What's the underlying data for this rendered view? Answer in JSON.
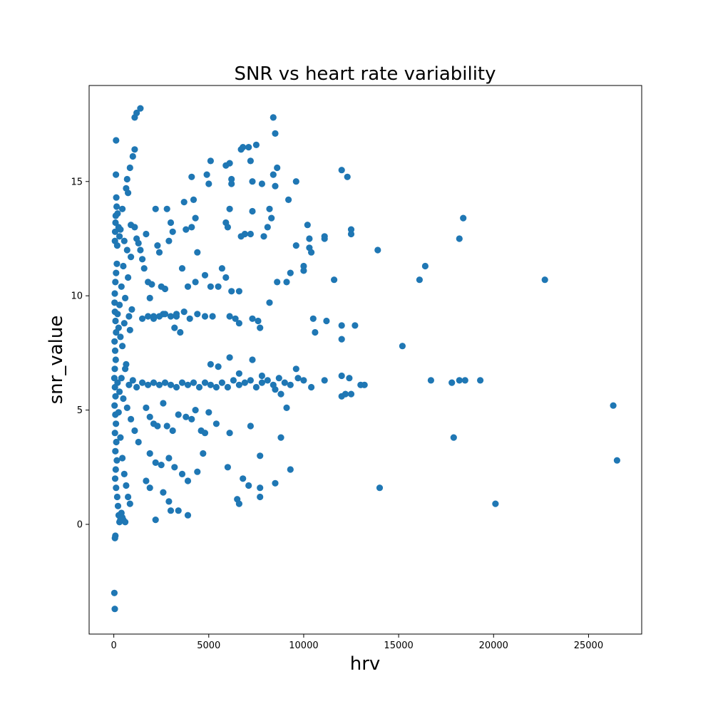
{
  "chart_data": {
    "type": "scatter",
    "title": "SNR vs heart rate variability",
    "xlabel": "hrv",
    "ylabel": "snr_value",
    "xlim": [
      -1300,
      27800
    ],
    "ylim": [
      -4.8,
      19.2
    ],
    "xticks": [
      0,
      5000,
      10000,
      15000,
      20000,
      25000
    ],
    "yticks": [
      0,
      5,
      10,
      15
    ],
    "grid": false,
    "color": "#1f77b4",
    "series": [
      {
        "points": [
          [
            50,
            -3.7
          ],
          [
            30,
            -3.0
          ],
          [
            60,
            -0.6
          ],
          [
            80,
            -0.5
          ],
          [
            120,
            16.8
          ],
          [
            110,
            15.3
          ],
          [
            130,
            14.3
          ],
          [
            150,
            13.9
          ],
          [
            100,
            13.5
          ],
          [
            90,
            13.2
          ],
          [
            70,
            12.8
          ],
          [
            60,
            12.4
          ],
          [
            200,
            13.6
          ],
          [
            250,
            13.0
          ],
          [
            300,
            12.6
          ],
          [
            180,
            12.2
          ],
          [
            160,
            11.4
          ],
          [
            120,
            11.0
          ],
          [
            80,
            10.6
          ],
          [
            50,
            10.1
          ],
          [
            40,
            9.7
          ],
          [
            60,
            9.3
          ],
          [
            90,
            8.9
          ],
          [
            120,
            8.4
          ],
          [
            40,
            8.0
          ],
          [
            70,
            7.6
          ],
          [
            100,
            7.2
          ],
          [
            50,
            6.8
          ],
          [
            30,
            6.4
          ],
          [
            60,
            6.0
          ],
          [
            90,
            5.6
          ],
          [
            40,
            5.2
          ],
          [
            80,
            4.8
          ],
          [
            110,
            4.4
          ],
          [
            60,
            4.0
          ],
          [
            130,
            3.6
          ],
          [
            80,
            3.2
          ],
          [
            160,
            2.8
          ],
          [
            100,
            2.4
          ],
          [
            70,
            2.0
          ],
          [
            120,
            1.6
          ],
          [
            180,
            1.2
          ],
          [
            220,
            0.8
          ],
          [
            260,
            0.4
          ],
          [
            300,
            0.1
          ],
          [
            350,
            0.2
          ],
          [
            400,
            0.5
          ],
          [
            450,
            0.3
          ],
          [
            500,
            0.2
          ],
          [
            600,
            0.1
          ],
          [
            200,
            9.2
          ],
          [
            250,
            8.6
          ],
          [
            300,
            9.6
          ],
          [
            350,
            8.2
          ],
          [
            400,
            10.4
          ],
          [
            450,
            7.8
          ],
          [
            500,
            11.3
          ],
          [
            550,
            8.8
          ],
          [
            600,
            9.9
          ],
          [
            650,
            7.0
          ],
          [
            700,
            12.0
          ],
          [
            750,
            10.8
          ],
          [
            800,
            9.1
          ],
          [
            850,
            8.5
          ],
          [
            900,
            11.7
          ],
          [
            950,
            9.4
          ],
          [
            200,
            6.2
          ],
          [
            300,
            5.8
          ],
          [
            400,
            6.4
          ],
          [
            500,
            5.5
          ],
          [
            600,
            6.8
          ],
          [
            700,
            5.1
          ],
          [
            800,
            6.1
          ],
          [
            900,
            4.6
          ],
          [
            1000,
            6.3
          ],
          [
            1100,
            4.1
          ],
          [
            1200,
            6.0
          ],
          [
            1300,
            3.6
          ],
          [
            250,
            4.9
          ],
          [
            350,
            3.8
          ],
          [
            450,
            2.9
          ],
          [
            550,
            2.2
          ],
          [
            650,
            1.7
          ],
          [
            750,
            1.2
          ],
          [
            850,
            0.9
          ],
          [
            350,
            12.9
          ],
          [
            450,
            13.8
          ],
          [
            550,
            12.4
          ],
          [
            650,
            14.7
          ],
          [
            750,
            14.5
          ],
          [
            700,
            15.1
          ],
          [
            850,
            15.6
          ],
          [
            1000,
            16.1
          ],
          [
            1100,
            16.4
          ],
          [
            1100,
            17.8
          ],
          [
            1200,
            18.0
          ],
          [
            1400,
            18.2
          ],
          [
            900,
            13.1
          ],
          [
            1100,
            13.0
          ],
          [
            1200,
            12.5
          ],
          [
            1300,
            12.3
          ],
          [
            1400,
            12.0
          ],
          [
            1500,
            11.6
          ],
          [
            1600,
            11.2
          ],
          [
            1700,
            12.7
          ],
          [
            1800,
            10.6
          ],
          [
            1900,
            9.9
          ],
          [
            2000,
            10.5
          ],
          [
            2100,
            9.1
          ],
          [
            2200,
            13.8
          ],
          [
            2300,
            12.2
          ],
          [
            2400,
            11.9
          ],
          [
            2500,
            10.4
          ],
          [
            2600,
            9.2
          ],
          [
            2700,
            10.3
          ],
          [
            2800,
            13.8
          ],
          [
            2900,
            12.4
          ],
          [
            3000,
            13.2
          ],
          [
            3100,
            12.8
          ],
          [
            3200,
            8.6
          ],
          [
            3300,
            9.2
          ],
          [
            3500,
            8.4
          ],
          [
            1500,
            9.0
          ],
          [
            1800,
            9.1
          ],
          [
            2100,
            9.0
          ],
          [
            2400,
            9.1
          ],
          [
            2700,
            9.2
          ],
          [
            3000,
            9.1
          ],
          [
            3300,
            9.1
          ],
          [
            3700,
            9.3
          ],
          [
            4000,
            9.0
          ],
          [
            4400,
            9.2
          ],
          [
            4800,
            9.1
          ],
          [
            5200,
            9.1
          ],
          [
            6100,
            9.1
          ],
          [
            6400,
            9.0
          ],
          [
            6600,
            8.8
          ],
          [
            7300,
            9.0
          ],
          [
            7600,
            8.9
          ],
          [
            7700,
            8.6
          ],
          [
            1500,
            6.2
          ],
          [
            1800,
            6.1
          ],
          [
            2100,
            6.2
          ],
          [
            2400,
            6.1
          ],
          [
            2700,
            6.2
          ],
          [
            3000,
            6.1
          ],
          [
            3300,
            6.0
          ],
          [
            3600,
            6.2
          ],
          [
            3900,
            6.1
          ],
          [
            4200,
            6.2
          ],
          [
            4500,
            6.0
          ],
          [
            4800,
            6.2
          ],
          [
            5100,
            6.1
          ],
          [
            5400,
            6.0
          ],
          [
            5700,
            6.2
          ],
          [
            6000,
            6.0
          ],
          [
            6300,
            6.3
          ],
          [
            6600,
            6.1
          ],
          [
            6900,
            6.2
          ],
          [
            7200,
            6.3
          ],
          [
            7500,
            6.0
          ],
          [
            7800,
            6.2
          ],
          [
            8100,
            6.3
          ],
          [
            8400,
            6.1
          ],
          [
            8700,
            6.4
          ],
          [
            9000,
            6.2
          ],
          [
            9300,
            6.1
          ],
          [
            9700,
            6.4
          ],
          [
            10000,
            6.3
          ],
          [
            10400,
            6.0
          ],
          [
            11100,
            6.3
          ],
          [
            12000,
            6.5
          ],
          [
            12400,
            6.4
          ],
          [
            13000,
            6.1
          ],
          [
            13200,
            6.1
          ],
          [
            12000,
            5.6
          ],
          [
            12200,
            5.7
          ],
          [
            12500,
            5.7
          ],
          [
            8500,
            5.9
          ],
          [
            8800,
            5.7
          ],
          [
            9100,
            5.1
          ],
          [
            5100,
            7.0
          ],
          [
            5500,
            6.9
          ],
          [
            6100,
            7.3
          ],
          [
            6600,
            6.6
          ],
          [
            7300,
            7.2
          ],
          [
            7800,
            6.5
          ],
          [
            9600,
            6.8
          ],
          [
            1700,
            5.1
          ],
          [
            1900,
            4.7
          ],
          [
            2100,
            4.4
          ],
          [
            2300,
            4.3
          ],
          [
            2600,
            5.3
          ],
          [
            2800,
            4.3
          ],
          [
            3100,
            4.1
          ],
          [
            3400,
            4.8
          ],
          [
            3800,
            4.7
          ],
          [
            4100,
            4.6
          ],
          [
            4300,
            5.0
          ],
          [
            4600,
            4.1
          ],
          [
            4800,
            4.0
          ],
          [
            5000,
            4.9
          ],
          [
            5400,
            4.4
          ],
          [
            6100,
            4.0
          ],
          [
            7200,
            4.3
          ],
          [
            8800,
            3.8
          ],
          [
            1900,
            3.1
          ],
          [
            2200,
            2.7
          ],
          [
            2500,
            2.6
          ],
          [
            2900,
            2.9
          ],
          [
            3200,
            2.5
          ],
          [
            3600,
            2.2
          ],
          [
            3900,
            1.9
          ],
          [
            4400,
            2.3
          ],
          [
            4700,
            3.1
          ],
          [
            6000,
            2.5
          ],
          [
            1700,
            1.9
          ],
          [
            1900,
            1.6
          ],
          [
            2200,
            0.2
          ],
          [
            2600,
            1.4
          ],
          [
            2900,
            1.0
          ],
          [
            3000,
            0.6
          ],
          [
            3400,
            0.6
          ],
          [
            3900,
            0.4
          ],
          [
            6500,
            1.1
          ],
          [
            6600,
            0.9
          ],
          [
            6800,
            2.0
          ],
          [
            7100,
            1.7
          ],
          [
            7700,
            1.6
          ],
          [
            7700,
            1.2
          ],
          [
            7700,
            3.0
          ],
          [
            8500,
            1.8
          ],
          [
            9300,
            2.4
          ],
          [
            3700,
            14.1
          ],
          [
            4100,
            15.2
          ],
          [
            4200,
            14.2
          ],
          [
            4100,
            13.0
          ],
          [
            4300,
            13.4
          ],
          [
            3800,
            12.9
          ],
          [
            4400,
            11.9
          ],
          [
            3600,
            11.2
          ],
          [
            3900,
            10.4
          ],
          [
            4300,
            10.6
          ],
          [
            4800,
            10.9
          ],
          [
            5100,
            10.4
          ],
          [
            5500,
            10.4
          ],
          [
            5700,
            11.2
          ],
          [
            5900,
            10.8
          ],
          [
            6200,
            10.2
          ],
          [
            6600,
            10.2
          ],
          [
            5000,
            14.9
          ],
          [
            4900,
            15.3
          ],
          [
            5100,
            15.9
          ],
          [
            5900,
            15.7
          ],
          [
            6100,
            15.8
          ],
          [
            6200,
            15.1
          ],
          [
            6200,
            14.9
          ],
          [
            6700,
            16.4
          ],
          [
            6800,
            16.5
          ],
          [
            7100,
            16.5
          ],
          [
            7500,
            16.6
          ],
          [
            7200,
            15.9
          ],
          [
            7300,
            15.0
          ],
          [
            7800,
            14.9
          ],
          [
            8400,
            15.3
          ],
          [
            8600,
            15.6
          ],
          [
            8400,
            17.8
          ],
          [
            8500,
            17.1
          ],
          [
            8500,
            14.8
          ],
          [
            9600,
            15.0
          ],
          [
            9200,
            14.2
          ],
          [
            8200,
            13.8
          ],
          [
            8300,
            13.4
          ],
          [
            8100,
            13.0
          ],
          [
            7300,
            13.7
          ],
          [
            5900,
            13.2
          ],
          [
            6000,
            13.0
          ],
          [
            6100,
            13.8
          ],
          [
            6700,
            12.6
          ],
          [
            6900,
            12.7
          ],
          [
            7200,
            12.7
          ],
          [
            7900,
            12.6
          ],
          [
            8600,
            10.6
          ],
          [
            8200,
            9.7
          ],
          [
            9100,
            10.6
          ],
          [
            9300,
            11.0
          ],
          [
            9600,
            12.2
          ],
          [
            10000,
            11.3
          ],
          [
            10000,
            11.1
          ],
          [
            10200,
            13.1
          ],
          [
            10300,
            12.5
          ],
          [
            10300,
            12.1
          ],
          [
            10400,
            11.9
          ],
          [
            10500,
            9.0
          ],
          [
            10600,
            8.4
          ],
          [
            11200,
            8.9
          ],
          [
            11100,
            12.6
          ],
          [
            11100,
            12.5
          ],
          [
            11600,
            10.7
          ],
          [
            12000,
            8.7
          ],
          [
            12000,
            8.1
          ],
          [
            12000,
            15.5
          ],
          [
            12300,
            15.2
          ],
          [
            12500,
            12.9
          ],
          [
            12500,
            12.7
          ],
          [
            12700,
            8.7
          ],
          [
            13900,
            12.0
          ],
          [
            14000,
            1.6
          ],
          [
            15200,
            7.8
          ],
          [
            16100,
            10.7
          ],
          [
            16400,
            11.3
          ],
          [
            16700,
            6.3
          ],
          [
            17800,
            6.2
          ],
          [
            17900,
            3.8
          ],
          [
            18200,
            12.5
          ],
          [
            18200,
            6.3
          ],
          [
            18400,
            13.4
          ],
          [
            18500,
            6.3
          ],
          [
            19300,
            6.3
          ],
          [
            20100,
            0.9
          ],
          [
            22700,
            10.7
          ],
          [
            26300,
            5.2
          ],
          [
            26500,
            2.8
          ]
        ]
      }
    ]
  }
}
